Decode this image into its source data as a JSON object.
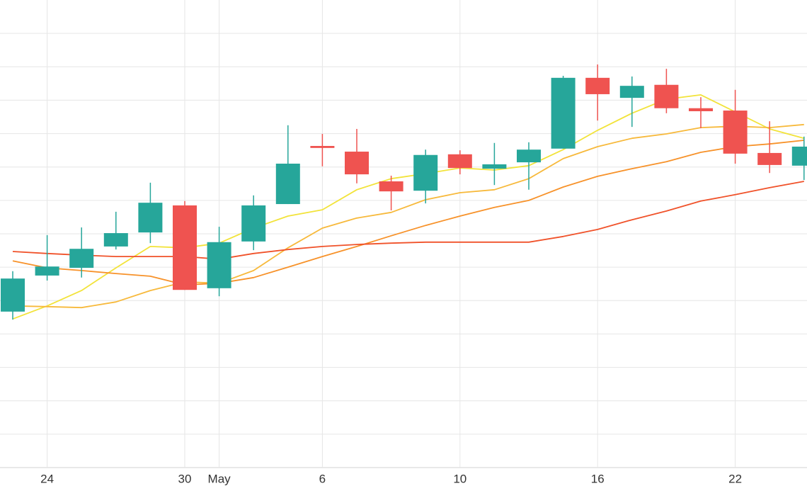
{
  "chart_data": {
    "type": "candlestick",
    "categories": [
      null,
      "24",
      null,
      null,
      null,
      "30",
      "May",
      null,
      null,
      "6",
      null,
      null,
      null,
      "10",
      null,
      null,
      null,
      "16",
      null,
      null,
      null,
      "22",
      null,
      null
    ],
    "open": [
      4.67,
      5.75,
      5.98,
      6.62,
      7.04,
      7.85,
      5.37,
      6.77,
      7.89,
      9.63,
      9.46,
      8.57,
      8.29,
      9.38,
      8.95,
      9.14,
      9.55,
      11.67,
      11.07,
      11.46,
      10.76,
      10.69,
      9.42,
      9.04
    ],
    "high": [
      5.88,
      6.96,
      7.19,
      7.66,
      8.53,
      7.98,
      7.21,
      8.15,
      10.25,
      9.99,
      10.14,
      8.74,
      9.52,
      9.5,
      9.72,
      9.74,
      11.73,
      12.07,
      11.71,
      11.94,
      11.09,
      11.31,
      10.37,
      9.91
    ],
    "low": [
      4.43,
      5.6,
      5.69,
      6.53,
      6.72,
      5.32,
      5.13,
      6.51,
      7.89,
      9.02,
      8.51,
      7.7,
      7.91,
      8.78,
      8.46,
      8.32,
      9.55,
      10.39,
      10.2,
      10.61,
      10.16,
      9.1,
      8.82,
      8.61
    ],
    "close": [
      5.66,
      6.02,
      6.55,
      7.02,
      7.93,
      5.32,
      6.75,
      7.85,
      9.1,
      9.57,
      8.78,
      8.27,
      9.36,
      8.97,
      9.08,
      9.52,
      11.67,
      11.18,
      11.43,
      10.76,
      10.67,
      9.4,
      9.06,
      9.61
    ],
    "up_color": "#26a69a",
    "down_color": "#ef5350",
    "lines": [
      {
        "color": "#f2e33a",
        "values": [
          4.45,
          4.84,
          5.3,
          5.98,
          6.62,
          6.58,
          6.72,
          7.17,
          7.53,
          7.72,
          8.32,
          8.65,
          8.8,
          8.97,
          8.91,
          9.04,
          9.52,
          10.1,
          10.61,
          11.03,
          11.16,
          10.65,
          10.14,
          9.86
        ]
      },
      {
        "color": "#f7b93b",
        "values": [
          4.84,
          4.82,
          4.79,
          4.96,
          5.3,
          5.56,
          5.52,
          5.9,
          6.58,
          7.17,
          7.47,
          7.64,
          8.02,
          8.23,
          8.32,
          8.65,
          9.25,
          9.61,
          9.86,
          9.99,
          10.18,
          10.22,
          10.18,
          10.27
        ]
      },
      {
        "color": "#f7922a",
        "values": [
          6.19,
          5.98,
          5.9,
          5.81,
          5.73,
          5.47,
          5.52,
          5.69,
          6.0,
          6.32,
          6.62,
          6.94,
          7.25,
          7.53,
          7.79,
          8.0,
          8.4,
          8.72,
          8.95,
          9.16,
          9.44,
          9.61,
          9.69,
          9.8
        ]
      },
      {
        "color": "#f0522a",
        "values": [
          6.47,
          6.41,
          6.36,
          6.32,
          6.32,
          6.32,
          6.24,
          6.41,
          6.53,
          6.62,
          6.68,
          6.72,
          6.75,
          6.75,
          6.75,
          6.75,
          6.92,
          7.13,
          7.42,
          7.68,
          7.98,
          8.17,
          8.38,
          8.57
        ]
      }
    ],
    "ylim": [
      0,
      14
    ],
    "yticks": [
      0,
      1,
      2,
      3,
      4,
      5,
      6,
      7,
      8,
      9,
      10,
      11,
      12,
      13
    ],
    "grid": true
  }
}
